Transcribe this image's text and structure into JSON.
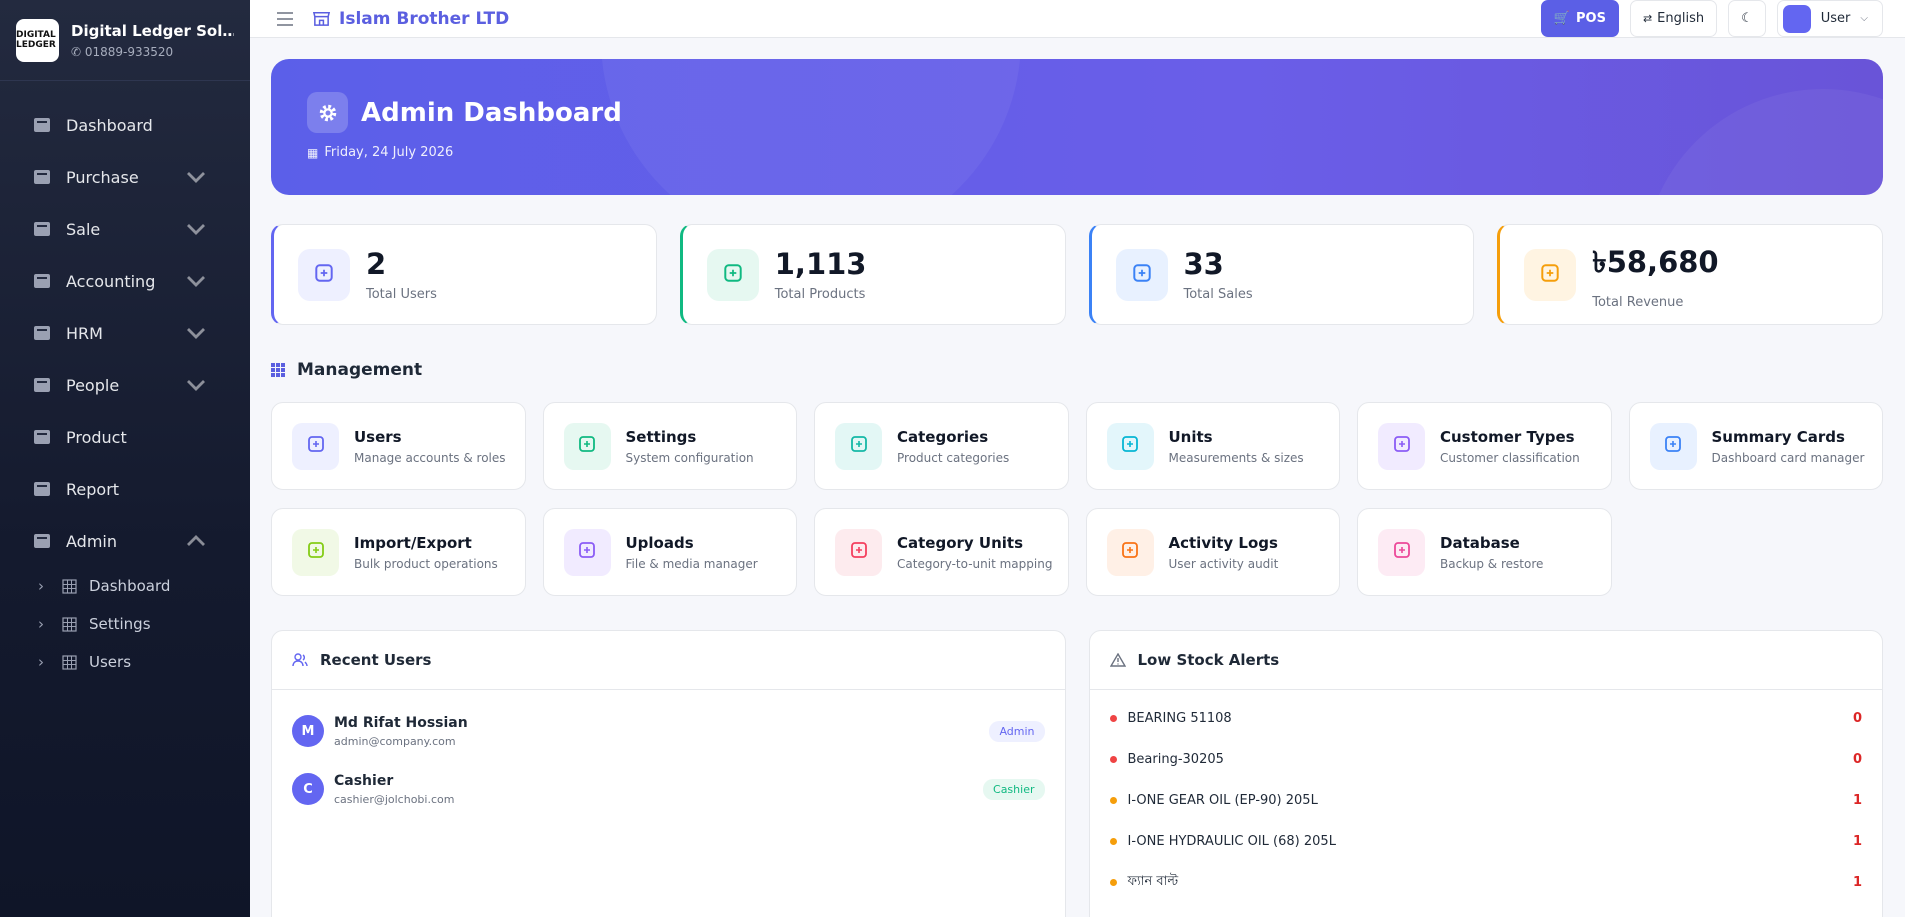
{
  "sidebar": {
    "brand": {
      "logo": "DIGITAL LEDGER",
      "name": "Digital Ledger Solutio...",
      "phone": "01889-933520"
    },
    "menu": [
      {
        "label": "Dashboard",
        "chevron": false
      },
      {
        "label": "Purchase",
        "chevron": true
      },
      {
        "label": "Sale",
        "chevron": true
      },
      {
        "label": "Accounting",
        "chevron": true
      },
      {
        "label": "HRM",
        "chevron": true
      },
      {
        "label": "People",
        "chevron": true
      },
      {
        "label": "Product",
        "chevron": false
      },
      {
        "label": "Report",
        "chevron": false
      },
      {
        "label": "Admin",
        "chevron": true
      }
    ],
    "submenu": [
      "Dashboard",
      "Settings",
      "Users"
    ]
  },
  "header": {
    "title": "Islam Brother LTD",
    "pos": "POS",
    "language": "English",
    "user": "User"
  },
  "banner": {
    "title": "Admin Dashboard",
    "date": "Friday, 24 July 2026"
  },
  "stats": [
    {
      "value": "2",
      "label": "Total Users",
      "color": "#6366f1",
      "bg": "#eef0ff"
    },
    {
      "value": "1,113",
      "label": "Total Products",
      "color": "#10b981",
      "bg": "#e6f8f1"
    },
    {
      "value": "33",
      "label": "Total Sales",
      "color": "#3b82f6",
      "bg": "#e8f1ff"
    },
    {
      "value": "৳58,680",
      "label": "Total Revenue",
      "color": "#f59e0b",
      "bg": "#fff4e2"
    }
  ],
  "management": {
    "title": "Management",
    "cards": [
      {
        "title": "Users",
        "subtitle": "Manage accounts & roles",
        "color": "#6366f1",
        "bg": "#eef0ff"
      },
      {
        "title": "Settings",
        "subtitle": "System configuration",
        "color": "#10b981",
        "bg": "#e6f8f1"
      },
      {
        "title": "Categories",
        "subtitle": "Product categories",
        "color": "#14b8a6",
        "bg": "#e3f7f5"
      },
      {
        "title": "Units",
        "subtitle": "Measurements & sizes",
        "color": "#06b6d4",
        "bg": "#e3f6fb"
      },
      {
        "title": "Customer Types",
        "subtitle": "Customer classification",
        "color": "#8b5cf6",
        "bg": "#f1ebff"
      },
      {
        "title": "Summary Cards",
        "subtitle": "Dashboard card manager",
        "color": "#3b82f6",
        "bg": "#e8f1ff"
      },
      {
        "title": "Import/Export",
        "subtitle": "Bulk product operations",
        "color": "#84cc16",
        "bg": "#f1f9e6"
      },
      {
        "title": "Uploads",
        "subtitle": "File & media manager",
        "color": "#8b5cf6",
        "bg": "#f1ebff"
      },
      {
        "title": "Category Units",
        "subtitle": "Category-to-unit mapping",
        "color": "#f43f5e",
        "bg": "#fdebee"
      },
      {
        "title": "Activity Logs",
        "subtitle": "User activity audit",
        "color": "#f97316",
        "bg": "#fff0e6"
      },
      {
        "title": "Database",
        "subtitle": "Backup & restore",
        "color": "#ec4899",
        "bg": "#fdebf4"
      }
    ]
  },
  "recent_users": {
    "title": "Recent Users",
    "users": [
      {
        "initial": "M",
        "name": "Md Rifat Hossian",
        "email": "admin@company.com",
        "role": "Admin",
        "role_color": "#6366f1",
        "role_bg": "#eef0ff"
      },
      {
        "initial": "C",
        "name": "Cashier",
        "email": "cashier@jolchobi.com",
        "role": "Cashier",
        "role_color": "#10b981",
        "role_bg": "#e6f8f1"
      }
    ]
  },
  "low_stock": {
    "title": "Low Stock Alerts",
    "items": [
      {
        "name": "BEARING 51108",
        "qty": "0"
      },
      {
        "name": "Bearing-30205",
        "qty": "0"
      },
      {
        "name": "I-ONE GEAR OIL (EP-90) 205L",
        "qty": "1"
      },
      {
        "name": "I-ONE HYDRAULIC OIL (68) 205L",
        "qty": "1"
      },
      {
        "name": "ফ্যান বাল্ট",
        "qty": "1"
      }
    ]
  }
}
